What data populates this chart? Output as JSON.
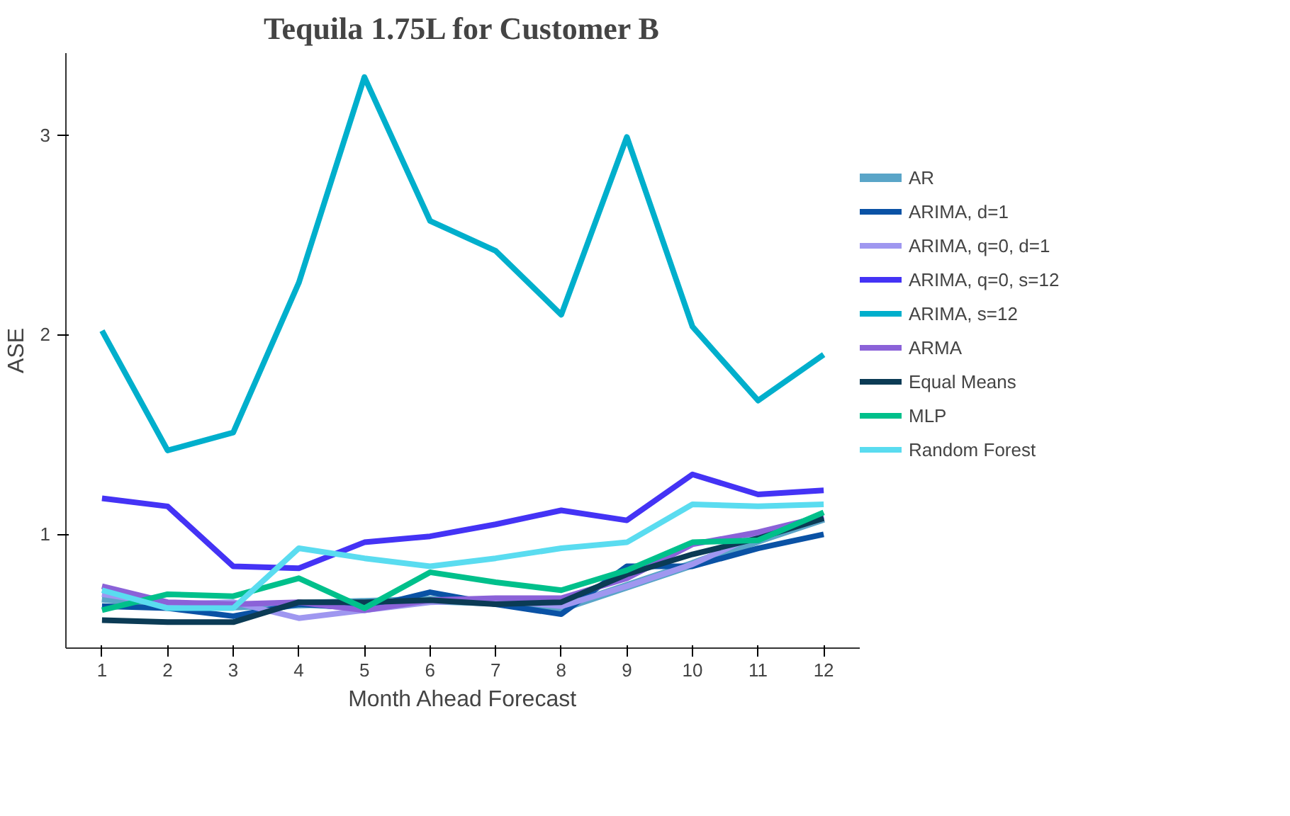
{
  "chart_data": {
    "type": "line",
    "title": "Tequila 1.75L for Customer B",
    "xlabel": "Month Ahead Forecast",
    "ylabel": "ASE",
    "x": [
      1,
      2,
      3,
      4,
      5,
      6,
      7,
      8,
      9,
      10,
      11,
      12
    ],
    "xlim": [
      0.45,
      12.55
    ],
    "xticks": [
      1,
      2,
      3,
      4,
      5,
      6,
      7,
      8,
      9,
      10,
      11,
      12
    ],
    "ylim": [
      0.43,
      3.41
    ],
    "yticks": [
      1,
      2,
      3
    ],
    "grid": false,
    "legend": "right",
    "series": [
      {
        "name": "AR",
        "color": "#5aa5c8",
        "values": [
          0.68,
          0.65,
          0.64,
          0.65,
          0.66,
          0.67,
          0.66,
          0.63,
          0.74,
          0.85,
          0.97,
          1.08
        ]
      },
      {
        "name": "ARIMA, d=1",
        "color": "#0a52a5",
        "values": [
          0.64,
          0.63,
          0.59,
          0.65,
          0.63,
          0.71,
          0.65,
          0.6,
          0.84,
          0.84,
          0.93,
          1.0
        ]
      },
      {
        "name": "ARIMA, q=0, d=1",
        "color": "#9f97f0",
        "values": [
          0.7,
          0.65,
          0.66,
          0.58,
          0.62,
          0.66,
          0.67,
          0.64,
          0.74,
          0.85,
          1.0,
          1.08
        ]
      },
      {
        "name": "ARIMA, q=0, s=12",
        "color": "#4433f5",
        "values": [
          1.18,
          1.14,
          0.84,
          0.83,
          0.96,
          0.99,
          1.05,
          1.12,
          1.07,
          1.3,
          1.2,
          1.22
        ]
      },
      {
        "name": "ARIMA, s=12",
        "color": "#00afcc",
        "values": [
          2.02,
          1.42,
          1.51,
          2.26,
          3.29,
          2.57,
          2.42,
          2.1,
          2.99,
          2.04,
          1.67,
          1.9
        ]
      },
      {
        "name": "ARMA",
        "color": "#8b62d8",
        "values": [
          0.74,
          0.66,
          0.65,
          0.66,
          0.62,
          0.67,
          0.68,
          0.68,
          0.78,
          0.95,
          1.01,
          1.09
        ]
      },
      {
        "name": "Equal Means",
        "color": "#0b3b55",
        "values": [
          0.57,
          0.56,
          0.56,
          0.66,
          0.66,
          0.67,
          0.65,
          0.66,
          0.8,
          0.9,
          0.98,
          1.08
        ]
      },
      {
        "name": "MLP",
        "color": "#00c08b",
        "values": [
          0.62,
          0.7,
          0.69,
          0.78,
          0.63,
          0.81,
          0.76,
          0.72,
          0.82,
          0.96,
          0.97,
          1.11
        ]
      },
      {
        "name": "Random Forest",
        "color": "#5adcf0",
        "values": [
          0.72,
          0.63,
          0.63,
          0.93,
          0.88,
          0.84,
          0.88,
          0.93,
          0.96,
          1.15,
          1.14,
          1.15
        ]
      }
    ]
  }
}
